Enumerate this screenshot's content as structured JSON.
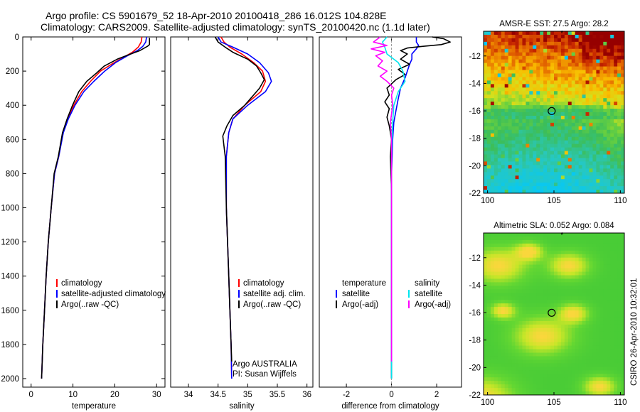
{
  "header": {
    "line1": "Argo profile: CS 5901679_52 18-Apr-2010 20100418_286 16.012S 104.828E",
    "line2": "Climatology: CARS2009. Satellite-adjusted climatology: synTS_20100420.nc (1.1d later)"
  },
  "side_label": "CSIRO 26-Apr-2010 10:32:01",
  "colors": {
    "climatology": "#ff0000",
    "satellite": "#0000ff",
    "argo": "#000000",
    "sat_salinity": "#00e5ee",
    "argo_salinity": "#ff00ff"
  },
  "chart_data": [
    {
      "type": "line",
      "xlabel": "temperature",
      "ylabel": "",
      "xlim": [
        -2,
        32
      ],
      "ylim": [
        2050,
        0
      ],
      "xticks": [
        0,
        10,
        20,
        30
      ],
      "yticks": [
        0,
        200,
        400,
        600,
        800,
        1000,
        1200,
        1400,
        1600,
        1800,
        2000
      ],
      "legend": [
        "climatology",
        "satellite-adjusted climatology",
        "Argo(..raw -QC)"
      ],
      "legend_colors": [
        "#ff0000",
        "#0000ff",
        "#000000"
      ],
      "series": [
        {
          "name": "climatology",
          "color": "#ff0000",
          "points": [
            [
              26.5,
              0
            ],
            [
              26.3,
              30
            ],
            [
              25.6,
              60
            ],
            [
              24.2,
              90
            ],
            [
              22,
              120
            ],
            [
              19.2,
              160
            ],
            [
              16.6,
              200
            ],
            [
              14.2,
              260
            ],
            [
              12.1,
              320
            ],
            [
              10.2,
              400
            ],
            [
              8.8,
              480
            ],
            [
              7.6,
              560
            ],
            [
              6.6,
              700
            ],
            [
              5.6,
              800
            ],
            [
              4.8,
              1000
            ],
            [
              4.1,
              1200
            ],
            [
              3.6,
              1400
            ],
            [
              3.2,
              1600
            ],
            [
              2.8,
              1800
            ],
            [
              2.5,
              2000
            ]
          ]
        },
        {
          "name": "satellite-adjusted climatology",
          "color": "#0000ff",
          "points": [
            [
              27.6,
              0
            ],
            [
              27.4,
              30
            ],
            [
              26.7,
              55
            ],
            [
              25.4,
              80
            ],
            [
              23,
              110
            ],
            [
              20.2,
              150
            ],
            [
              17.6,
              200
            ],
            [
              15,
              260
            ],
            [
              12.6,
              320
            ],
            [
              10.5,
              400
            ],
            [
              8.9,
              480
            ],
            [
              7.7,
              560
            ],
            [
              6.6,
              700
            ],
            [
              5.6,
              800
            ],
            [
              4.8,
              1000
            ],
            [
              4.1,
              1200
            ],
            [
              3.6,
              1400
            ],
            [
              3.2,
              1600
            ],
            [
              2.8,
              1800
            ],
            [
              2.5,
              2000
            ]
          ]
        },
        {
          "name": "Argo(..raw -QC)",
          "color": "#000000",
          "points": [
            [
              28.3,
              5
            ],
            [
              28.3,
              45
            ],
            [
              27.8,
              55
            ],
            [
              26,
              80
            ],
            [
              23.8,
              100
            ],
            [
              20.6,
              130
            ],
            [
              17.5,
              170
            ],
            [
              15.7,
              210
            ],
            [
              13.3,
              260
            ],
            [
              11.4,
              320
            ],
            [
              9.9,
              400
            ],
            [
              8.6,
              480
            ],
            [
              7.5,
              560
            ],
            [
              6.5,
              700
            ],
            [
              5.5,
              800
            ],
            [
              4.8,
              1000
            ],
            [
              4.1,
              1200
            ],
            [
              3.6,
              1400
            ],
            [
              3.2,
              1600
            ],
            [
              2.8,
              1800
            ],
            [
              2.5,
              2000
            ]
          ]
        }
      ]
    },
    {
      "type": "line",
      "xlabel": "salinity",
      "ylabel": "",
      "xlim": [
        33.7,
        36.1
      ],
      "ylim": [
        2050,
        0
      ],
      "xticks": [
        34,
        34.5,
        35,
        35.5,
        36
      ],
      "yticks": [],
      "legend": [
        "climatology",
        "satellite adj. clim.",
        "Argo(..raw -QC)"
      ],
      "legend_colors": [
        "#ff0000",
        "#0000ff",
        "#000000"
      ],
      "annotation": [
        "Argo AUSTRALIA",
        "PI: Susan Wijffels"
      ],
      "series": [
        {
          "name": "climatology",
          "color": "#ff0000",
          "points": [
            [
              34.55,
              0
            ],
            [
              34.6,
              30
            ],
            [
              34.7,
              60
            ],
            [
              34.9,
              100
            ],
            [
              35.1,
              150
            ],
            [
              35.25,
              200
            ],
            [
              35.3,
              260
            ],
            [
              35.22,
              320
            ],
            [
              34.95,
              400
            ],
            [
              34.75,
              480
            ],
            [
              34.68,
              560
            ],
            [
              34.64,
              700
            ],
            [
              34.64,
              1000
            ],
            [
              34.66,
              1200
            ],
            [
              34.68,
              1400
            ],
            [
              34.7,
              1600
            ],
            [
              34.72,
              1800
            ],
            [
              34.73,
              2000
            ]
          ]
        },
        {
          "name": "satellite adj. clim.",
          "color": "#0000ff",
          "points": [
            [
              34.5,
              0
            ],
            [
              34.55,
              30
            ],
            [
              34.75,
              60
            ],
            [
              35,
              100
            ],
            [
              35.2,
              150
            ],
            [
              35.35,
              210
            ],
            [
              35.4,
              260
            ],
            [
              35.3,
              320
            ],
            [
              35,
              400
            ],
            [
              34.75,
              480
            ],
            [
              34.68,
              560
            ],
            [
              34.64,
              700
            ],
            [
              34.64,
              1000
            ],
            [
              34.66,
              1200
            ],
            [
              34.68,
              1400
            ],
            [
              34.7,
              1600
            ],
            [
              34.72,
              1800
            ],
            [
              34.73,
              2000
            ]
          ]
        },
        {
          "name": "Argo(..raw -QC)",
          "color": "#000000",
          "points": [
            [
              34.45,
              0
            ],
            [
              34.5,
              30
            ],
            [
              34.62,
              60
            ],
            [
              34.75,
              90
            ],
            [
              35,
              130
            ],
            [
              35.15,
              170
            ],
            [
              35.22,
              210
            ],
            [
              35.28,
              250
            ],
            [
              35.2,
              300
            ],
            [
              34.95,
              400
            ],
            [
              34.75,
              460
            ],
            [
              34.65,
              520
            ],
            [
              34.58,
              580
            ],
            [
              34.6,
              640
            ],
            [
              34.62,
              700
            ],
            [
              34.64,
              1000
            ],
            [
              34.66,
              1200
            ],
            [
              34.68,
              1400
            ],
            [
              34.7,
              1600
            ],
            [
              34.72,
              1800
            ],
            [
              34.73,
              1900
            ]
          ]
        }
      ]
    },
    {
      "type": "line",
      "xlabel": "difference from climatology",
      "ylabel": "",
      "xlim": [
        -3.2,
        3.1
      ],
      "ylim": [
        2050,
        0
      ],
      "xticks": [
        -2,
        0,
        2
      ],
      "yticks": [],
      "legend_left_title": "temperature",
      "legend_right_title": "salinity",
      "legend_left": [
        "satellite",
        "Argo(-adj)"
      ],
      "legend_left_colors": [
        "#0000ff",
        "#000000"
      ],
      "legend_right": [
        "satellite",
        "Argo(-adj)"
      ],
      "legend_right_colors": [
        "#00e5ee",
        "#ff00ff"
      ],
      "series": [
        {
          "name": "temperature satellite",
          "color": "#0000ff",
          "points": [
            [
              1.1,
              0
            ],
            [
              1.1,
              30
            ],
            [
              1.2,
              50
            ],
            [
              1.1,
              70
            ],
            [
              0.9,
              100
            ],
            [
              0.9,
              130
            ],
            [
              0.8,
              160
            ],
            [
              0.7,
              200
            ],
            [
              0.6,
              240
            ],
            [
              0.4,
              300
            ],
            [
              0.3,
              360
            ],
            [
              0.2,
              430
            ],
            [
              0.1,
              500
            ],
            [
              0.05,
              600
            ],
            [
              0,
              800
            ],
            [
              0,
              1200
            ],
            [
              0,
              1600
            ],
            [
              0,
              2000
            ]
          ]
        },
        {
          "name": "temperature Argo(-adj)",
          "color": "#000000",
          "points": [
            [
              1.8,
              0
            ],
            [
              2.3,
              10
            ],
            [
              2.6,
              30
            ],
            [
              2.2,
              45
            ],
            [
              1.4,
              55
            ],
            [
              0.7,
              65
            ],
            [
              0.4,
              80
            ],
            [
              0.7,
              100
            ],
            [
              0.4,
              130
            ],
            [
              0.8,
              160
            ],
            [
              0.3,
              190
            ],
            [
              0.6,
              220
            ],
            [
              0.2,
              250
            ],
            [
              -0.2,
              300
            ],
            [
              -0.1,
              340
            ],
            [
              -0.3,
              380
            ],
            [
              -0.1,
              420
            ],
            [
              -0.2,
              470
            ],
            [
              -0.1,
              520
            ],
            [
              0,
              600
            ],
            [
              -0.05,
              700
            ],
            [
              0,
              900
            ],
            [
              0,
              1200
            ],
            [
              0,
              1600
            ],
            [
              0,
              2000
            ]
          ]
        },
        {
          "name": "salinity satellite",
          "color": "#00e5ee",
          "points": [
            [
              -0.2,
              0
            ],
            [
              -0.4,
              30
            ],
            [
              -0.3,
              60
            ],
            [
              -0.2,
              100
            ],
            [
              0.3,
              150
            ],
            [
              0.5,
              200
            ],
            [
              0.6,
              260
            ],
            [
              0.3,
              320
            ],
            [
              0.1,
              400
            ],
            [
              0.05,
              500
            ],
            [
              0,
              700
            ],
            [
              0,
              1000
            ],
            [
              0,
              1500
            ],
            [
              0,
              2000
            ]
          ]
        },
        {
          "name": "salinity Argo(-adj)",
          "color": "#ff00ff",
          "points": [
            [
              -0.5,
              0
            ],
            [
              -0.8,
              30
            ],
            [
              -0.2,
              50
            ],
            [
              -0.9,
              70
            ],
            [
              -0.3,
              90
            ],
            [
              -0.7,
              110
            ],
            [
              -0.4,
              140
            ],
            [
              -0.6,
              170
            ],
            [
              -0.2,
              200
            ],
            [
              -0.5,
              230
            ],
            [
              -0.2,
              260
            ],
            [
              0.1,
              300
            ],
            [
              0,
              340
            ],
            [
              0.05,
              400
            ],
            [
              -0.05,
              500
            ],
            [
              0,
              600
            ],
            [
              0,
              800
            ],
            [
              0,
              1000
            ],
            [
              0,
              1500
            ],
            [
              0,
              1900
            ]
          ]
        }
      ]
    },
    {
      "type": "heatmap",
      "title": "AMSR-E SST: 27.5 Argo: 28.2",
      "xlim": [
        99.7,
        110.3
      ],
      "ylim": [
        -22,
        -10.2
      ],
      "xticks": [
        100,
        105,
        110
      ],
      "yticks": [
        -12,
        -14,
        -16,
        -18,
        -20,
        -22
      ],
      "marker": [
        104.828,
        -16.012
      ],
      "colormap": "sst"
    },
    {
      "type": "heatmap",
      "title": "Altimetric SLA: 0.052 Argo: 0.084",
      "xlim": [
        99.7,
        110.3
      ],
      "ylim": [
        -22,
        -10.2
      ],
      "xticks": [
        100,
        105,
        110
      ],
      "yticks": [
        -12,
        -14,
        -16,
        -18,
        -20,
        -22
      ],
      "marker": [
        104.828,
        -16.012
      ],
      "colormap": "sla"
    }
  ]
}
